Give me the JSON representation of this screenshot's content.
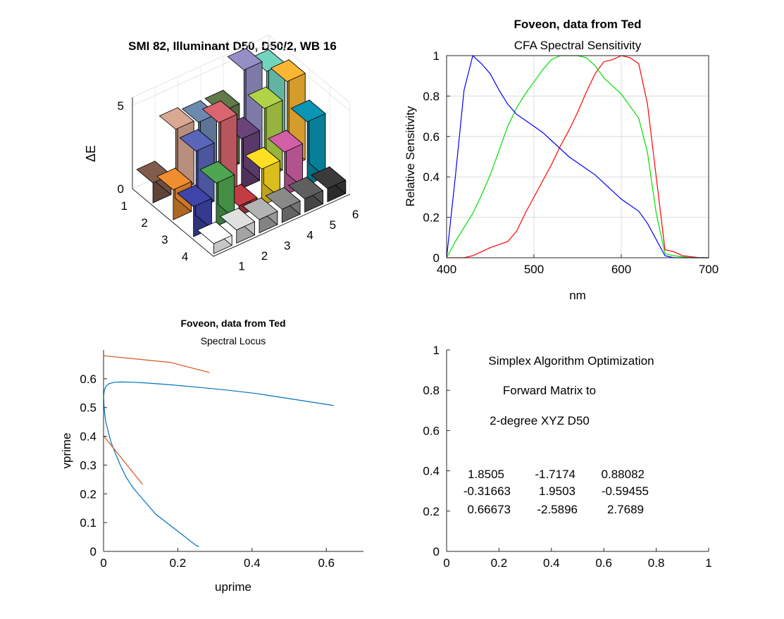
{
  "chart_data": [
    {
      "type": "bar3d",
      "title": "SMI 82, Illuminant D50, D50/2, WB 16",
      "zlabel": "ΔE",
      "zticks": [
        "0",
        "5"
      ],
      "xticks": [
        "1",
        "2",
        "3",
        "4",
        "5",
        "6"
      ],
      "yticks": [
        "1",
        "2",
        "3",
        "4"
      ],
      "zlim": [
        0,
        5.5
      ],
      "values": [
        [
          1.2,
          3.8,
          3.6,
          3.6,
          5.5,
          4.8
        ],
        [
          1.8,
          3.5,
          4.6,
          3.0,
          4.2,
          5.2
        ],
        [
          1.8,
          2.6,
          0.6,
          2.2,
          2.6,
          3.8
        ],
        [
          0.6,
          0.8,
          0.8,
          0.8,
          0.8,
          0.8
        ]
      ],
      "colors": [
        [
          "#735244",
          "#c29682",
          "#627a9d",
          "#576c43",
          "#8580b1",
          "#67bdaa"
        ],
        [
          "#d67e2c",
          "#505ba6",
          "#c15a63",
          "#5e3c6c",
          "#9dbc40",
          "#e0a32e"
        ],
        [
          "#383d96",
          "#469449",
          "#af363c",
          "#e7c71f",
          "#bb5695",
          "#0885a1"
        ],
        [
          "#f3f3f2",
          "#c8c8c8",
          "#a0a0a0",
          "#7a7a79",
          "#555555",
          "#343434"
        ]
      ]
    },
    {
      "type": "line",
      "title": "Foveon, data from Ted",
      "subtitle": "CFA Spectral Sensitivity",
      "xlabel": "nm",
      "ylabel": "Relative Sensitivity",
      "xlim": [
        400,
        700
      ],
      "ylim": [
        0,
        1
      ],
      "xticks": [
        400,
        500,
        600,
        700
      ],
      "yticks": [
        0,
        0.2,
        0.4,
        0.6,
        0.8,
        1
      ],
      "grid": true,
      "series": [
        {
          "color": "#ff0000",
          "x": [
            400,
            410,
            420,
            430,
            440,
            450,
            460,
            470,
            480,
            490,
            500,
            510,
            520,
            530,
            540,
            550,
            560,
            570,
            580,
            590,
            600,
            610,
            620,
            630,
            640,
            650,
            660,
            670,
            680,
            690,
            700
          ],
          "y": [
            0,
            0,
            0,
            0.01,
            0.03,
            0.05,
            0.065,
            0.08,
            0.13,
            0.22,
            0.3,
            0.38,
            0.46,
            0.55,
            0.63,
            0.72,
            0.82,
            0.91,
            0.97,
            0.98,
            1.0,
            0.99,
            0.96,
            0.76,
            0.4,
            0.04,
            0.03,
            0.01,
            0.005,
            0,
            0
          ]
        },
        {
          "color": "#00e000",
          "x": [
            400,
            410,
            420,
            430,
            440,
            450,
            460,
            470,
            480,
            490,
            500,
            510,
            520,
            530,
            540,
            550,
            560,
            570,
            580,
            590,
            600,
            610,
            620,
            630,
            640,
            650,
            660,
            670,
            680,
            690,
            700
          ],
          "y": [
            0,
            0.08,
            0.15,
            0.22,
            0.31,
            0.41,
            0.53,
            0.65,
            0.74,
            0.81,
            0.87,
            0.93,
            0.98,
            1.0,
            1.0,
            1.0,
            0.99,
            0.95,
            0.89,
            0.85,
            0.81,
            0.75,
            0.69,
            0.52,
            0.22,
            0.02,
            0.01,
            0.005,
            0,
            0,
            0
          ]
        },
        {
          "color": "#0000ff",
          "x": [
            400,
            410,
            420,
            430,
            440,
            450,
            460,
            470,
            480,
            490,
            500,
            510,
            520,
            530,
            540,
            550,
            560,
            570,
            580,
            590,
            600,
            610,
            620,
            630,
            640,
            650,
            660,
            670,
            680,
            690,
            700
          ],
          "y": [
            0,
            0.4,
            0.83,
            1.0,
            0.96,
            0.91,
            0.83,
            0.76,
            0.71,
            0.68,
            0.65,
            0.62,
            0.58,
            0.54,
            0.5,
            0.47,
            0.44,
            0.41,
            0.37,
            0.33,
            0.29,
            0.26,
            0.23,
            0.17,
            0.09,
            0.01,
            0,
            0,
            0,
            0,
            0
          ]
        }
      ]
    },
    {
      "type": "line",
      "title": "Foveon, data from Ted",
      "subtitle": "Spectral Locus",
      "xlabel": "uprime",
      "ylabel": "vprime",
      "xlim": [
        0,
        0.7
      ],
      "ylim": [
        0,
        0.7
      ],
      "xticks": [
        0,
        0.2,
        0.4,
        0.6
      ],
      "yticks": [
        0,
        0.1,
        0.2,
        0.3,
        0.4,
        0.5,
        0.6
      ],
      "series": [
        {
          "color": "#0072bd",
          "x": [
            0.257,
            0.25,
            0.23,
            0.2,
            0.17,
            0.14,
            0.12,
            0.1,
            0.08,
            0.06,
            0.045,
            0.032,
            0.02,
            0.012,
            0.006,
            0.003,
            0.001,
            0.0,
            0.002,
            0.007,
            0.015,
            0.03,
            0.05,
            0.08,
            0.12,
            0.18,
            0.25,
            0.33,
            0.41,
            0.48,
            0.55,
            0.62
          ],
          "y": [
            0.017,
            0.02,
            0.04,
            0.07,
            0.1,
            0.13,
            0.16,
            0.19,
            0.22,
            0.26,
            0.3,
            0.34,
            0.38,
            0.42,
            0.45,
            0.48,
            0.51,
            0.54,
            0.56,
            0.575,
            0.583,
            0.588,
            0.589,
            0.588,
            0.585,
            0.579,
            0.571,
            0.561,
            0.549,
            0.535,
            0.521,
            0.507
          ]
        },
        {
          "color": "#d95319",
          "x": [
            0.0,
            0.18,
            0.285
          ],
          "y": [
            0.68,
            0.657,
            0.622
          ]
        },
        {
          "color": "#d95319",
          "x": [
            0.0,
            0.105
          ],
          "y": [
            0.402,
            0.233
          ]
        }
      ]
    },
    {
      "type": "text-panel",
      "xlim": [
        0,
        1
      ],
      "ylim": [
        0,
        1
      ],
      "xticks": [
        0,
        0.2,
        0.4,
        0.6,
        0.8,
        1
      ],
      "yticks": [
        0,
        0.2,
        0.4,
        0.6,
        0.8,
        1
      ]
    }
  ],
  "panel4": {
    "line1": "Simplex Algorithm Optimization",
    "line2": "Forward Matrix to",
    "line3": "2-degree XYZ D50",
    "matrix": [
      [
        "1.8505",
        "-1.7174",
        "0.88082"
      ],
      [
        "-0.31663",
        "1.9503",
        "-0.59455"
      ],
      [
        "0.66673",
        "-2.5896",
        "2.7689"
      ]
    ]
  }
}
